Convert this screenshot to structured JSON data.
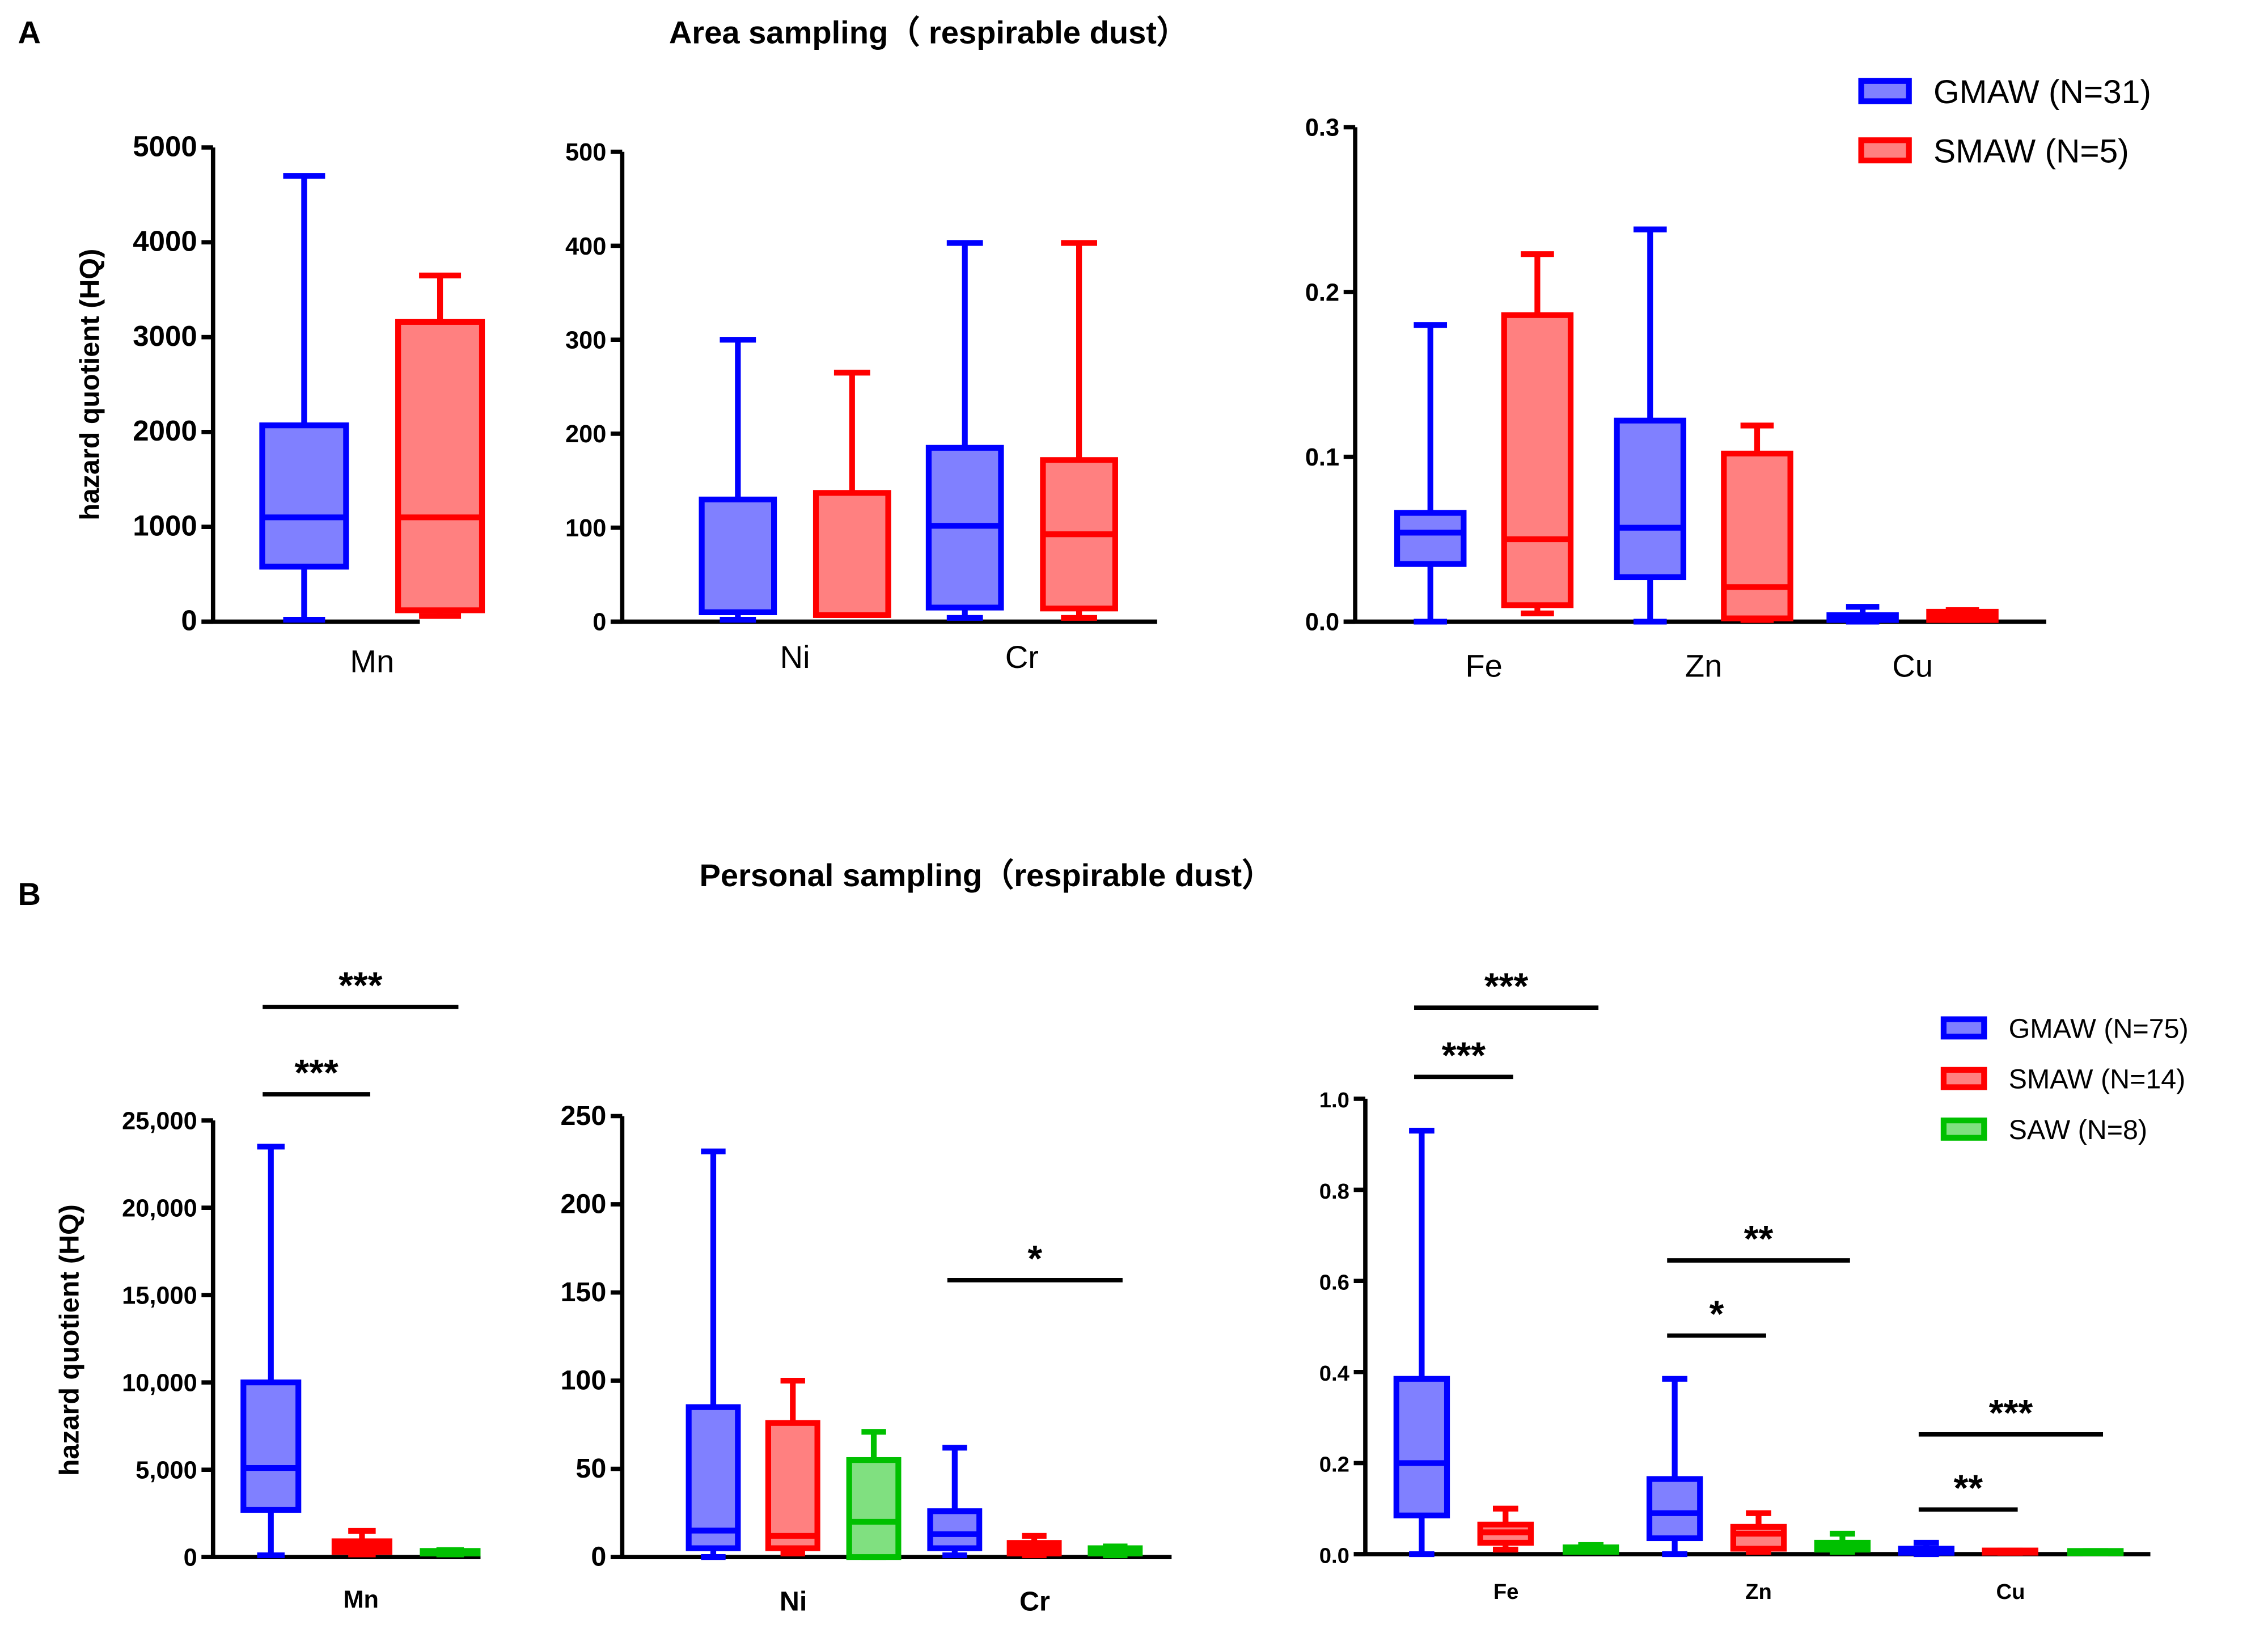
{
  "panel_labels": [
    "A",
    "B"
  ],
  "titles": [
    "Area sampling（ respirable dust）",
    "Personal sampling（respirable dust）"
  ],
  "ylabel": "hazard quotient (HQ)",
  "colors": {
    "GMAW": {
      "stroke": "#0000ff",
      "fill": "#8080ff"
    },
    "SMAW": {
      "stroke": "#ff0000",
      "fill": "#ff8080"
    },
    "SAW": {
      "stroke": "#00c000",
      "fill": "#80e080"
    },
    "axis": "#000000"
  },
  "legends": [
    {
      "entries": [
        {
          "group": "GMAW",
          "label": "GMAW (N=31)"
        },
        {
          "group": "SMAW",
          "label": "SMAW (N=5)"
        }
      ]
    },
    {
      "entries": [
        {
          "group": "GMAW",
          "label": "GMAW (N=75)"
        },
        {
          "group": "SMAW",
          "label": "SMAW (N=14)"
        },
        {
          "group": "SAW",
          "label": "SAW (N=8)"
        }
      ]
    }
  ],
  "chart_data": [
    {
      "id": "A-Mn",
      "type": "box",
      "ylim": [
        0,
        5000
      ],
      "yticks": [
        0,
        1000,
        2000,
        3000,
        4000,
        5000
      ],
      "ytick_labels": [
        "0",
        "1000",
        "2000",
        "3000",
        "4000",
        "5000"
      ],
      "categories": [
        "Mn"
      ],
      "groups": [
        "GMAW",
        "SMAW"
      ],
      "boxes": [
        {
          "category": "Mn",
          "group": "GMAW",
          "min": 20,
          "q1": 580,
          "median": 1100,
          "q3": 2070,
          "max": 4700
        },
        {
          "category": "Mn",
          "group": "SMAW",
          "min": 60,
          "q1": 120,
          "median": 1100,
          "q3": 3160,
          "max": 3650
        }
      ],
      "significance": []
    },
    {
      "id": "A-NiCr",
      "type": "box",
      "ylim": [
        0,
        500
      ],
      "yticks": [
        0,
        100,
        200,
        300,
        400,
        500
      ],
      "ytick_labels": [
        "0",
        "100",
        "200",
        "300",
        "400",
        "500"
      ],
      "categories": [
        "Ni",
        "Cr"
      ],
      "groups": [
        "GMAW",
        "SMAW"
      ],
      "boxes": [
        {
          "category": "Ni",
          "group": "GMAW",
          "min": 2,
          "q1": 10,
          "median": 10,
          "q3": 130,
          "max": 300
        },
        {
          "category": "Ni",
          "group": "SMAW",
          "min": 7,
          "q1": 7,
          "median": 7,
          "q3": 137,
          "max": 265
        },
        {
          "category": "Cr",
          "group": "GMAW",
          "min": 4,
          "q1": 15,
          "median": 102,
          "q3": 185,
          "max": 403
        },
        {
          "category": "Cr",
          "group": "SMAW",
          "min": 4,
          "q1": 14,
          "median": 93,
          "q3": 172,
          "max": 403
        }
      ],
      "significance": []
    },
    {
      "id": "A-FeZnCu",
      "type": "box",
      "ylim": [
        0,
        0.3
      ],
      "yticks": [
        0,
        0.1,
        0.2,
        0.3
      ],
      "ytick_labels": [
        "0.0",
        "0.1",
        "0.2",
        "0.3"
      ],
      "categories": [
        "Fe",
        "Zn",
        "Cu"
      ],
      "groups": [
        "GMAW",
        "SMAW"
      ],
      "boxes": [
        {
          "category": "Fe",
          "group": "GMAW",
          "min": 0,
          "q1": 0.035,
          "median": 0.054,
          "q3": 0.066,
          "max": 0.18
        },
        {
          "category": "Fe",
          "group": "SMAW",
          "min": 0.005,
          "q1": 0.01,
          "median": 0.05,
          "q3": 0.186,
          "max": 0.223
        },
        {
          "category": "Zn",
          "group": "GMAW",
          "min": 0,
          "q1": 0.027,
          "median": 0.057,
          "q3": 0.122,
          "max": 0.238
        },
        {
          "category": "Zn",
          "group": "SMAW",
          "min": 0.001,
          "q1": 0.002,
          "median": 0.021,
          "q3": 0.102,
          "max": 0.119
        },
        {
          "category": "Cu",
          "group": "GMAW",
          "min": 0,
          "q1": 0.001,
          "median": 0.002,
          "q3": 0.004,
          "max": 0.009
        },
        {
          "category": "Cu",
          "group": "SMAW",
          "min": 0.001,
          "q1": 0.001,
          "median": 0.003,
          "q3": 0.006,
          "max": 0.007
        }
      ],
      "significance": []
    },
    {
      "id": "B-Mn",
      "type": "box",
      "ylim": [
        0,
        25000
      ],
      "yticks": [
        0,
        5000,
        10000,
        15000,
        20000,
        25000
      ],
      "ytick_labels": [
        "0",
        "5,000",
        "10,000",
        "15,000",
        "20,000",
        "25,000"
      ],
      "categories": [
        "Mn"
      ],
      "groups": [
        "GMAW",
        "SMAW",
        "SAW"
      ],
      "boxes": [
        {
          "category": "Mn",
          "group": "GMAW",
          "min": 100,
          "q1": 2700,
          "median": 5100,
          "q3": 10000,
          "max": 23500
        },
        {
          "category": "Mn",
          "group": "SMAW",
          "min": 150,
          "q1": 300,
          "median": 600,
          "q3": 900,
          "max": 1500
        },
        {
          "category": "Mn",
          "group": "SAW",
          "min": 150,
          "q1": 200,
          "median": 280,
          "q3": 350,
          "max": 400
        }
      ],
      "significance": [
        {
          "from": 0,
          "to": 1,
          "y": 26500,
          "label": "***"
        },
        {
          "from": 0,
          "to": 2,
          "y": 31500,
          "label": "***"
        }
      ]
    },
    {
      "id": "B-NiCr",
      "type": "box",
      "ylim": [
        0,
        250
      ],
      "yticks": [
        0,
        50,
        100,
        150,
        200,
        250
      ],
      "ytick_labels": [
        "0",
        "50",
        "100",
        "150",
        "200",
        "250"
      ],
      "categories": [
        "Ni",
        "Cr"
      ],
      "groups": [
        "GMAW",
        "SMAW",
        "SAW"
      ],
      "boxes": [
        {
          "category": "Ni",
          "group": "GMAW",
          "min": 0,
          "q1": 5,
          "median": 15,
          "q3": 85,
          "max": 230
        },
        {
          "category": "Ni",
          "group": "SMAW",
          "min": 2,
          "q1": 5,
          "median": 12,
          "q3": 76,
          "max": 100
        },
        {
          "category": "Ni",
          "group": "SAW",
          "min": 0,
          "q1": 0,
          "median": 20,
          "q3": 55,
          "max": 71
        },
        {
          "category": "Cr",
          "group": "GMAW",
          "min": 1,
          "q1": 5,
          "median": 13,
          "q3": 26,
          "max": 62
        },
        {
          "category": "Cr",
          "group": "SMAW",
          "min": 1,
          "q1": 2,
          "median": 5,
          "q3": 8,
          "max": 12
        },
        {
          "category": "Cr",
          "group": "SAW",
          "min": 1,
          "q1": 2,
          "median": 3,
          "q3": 5,
          "max": 6
        }
      ],
      "significance": [
        {
          "from": 3,
          "to": 5,
          "y": 157,
          "label": "*"
        }
      ]
    },
    {
      "id": "B-FeZnCu",
      "type": "box",
      "ylim": [
        0,
        1.0
      ],
      "yticks": [
        0,
        0.2,
        0.4,
        0.6,
        0.8,
        1.0
      ],
      "ytick_labels": [
        "0.0",
        "0.2",
        "0.4",
        "0.6",
        "0.8",
        "1.0"
      ],
      "categories": [
        "Fe",
        "Zn",
        "Cu"
      ],
      "groups": [
        "GMAW",
        "SMAW",
        "SAW"
      ],
      "boxes": [
        {
          "category": "Fe",
          "group": "GMAW",
          "min": 0,
          "q1": 0.085,
          "median": 0.2,
          "q3": 0.385,
          "max": 0.93
        },
        {
          "category": "Fe",
          "group": "SMAW",
          "min": 0.01,
          "q1": 0.025,
          "median": 0.048,
          "q3": 0.065,
          "max": 0.1
        },
        {
          "category": "Fe",
          "group": "SAW",
          "min": 0.005,
          "q1": 0.005,
          "median": 0.01,
          "q3": 0.015,
          "max": 0.02
        },
        {
          "category": "Zn",
          "group": "GMAW",
          "min": 0,
          "q1": 0.035,
          "median": 0.09,
          "q3": 0.165,
          "max": 0.385
        },
        {
          "category": "Zn",
          "group": "SMAW",
          "min": 0.005,
          "q1": 0.012,
          "median": 0.045,
          "q3": 0.06,
          "max": 0.09
        },
        {
          "category": "Zn",
          "group": "SAW",
          "min": 0.005,
          "q1": 0.01,
          "median": 0.02,
          "q3": 0.025,
          "max": 0.045
        },
        {
          "category": "Cu",
          "group": "GMAW",
          "min": 0,
          "q1": 0.003,
          "median": 0.007,
          "q3": 0.012,
          "max": 0.025
        },
        {
          "category": "Cu",
          "group": "SMAW",
          "min": 0.003,
          "q1": 0.004,
          "median": 0.005,
          "q3": 0.008,
          "max": 0.008
        },
        {
          "category": "Cu",
          "group": "SAW",
          "min": 0.002,
          "q1": 0.003,
          "median": 0.004,
          "q3": 0.007,
          "max": 0.007
        }
      ],
      "significance": [
        {
          "from": 0,
          "to": 1,
          "y": 1.048,
          "label": "***"
        },
        {
          "from": 0,
          "to": 2,
          "y": 1.2,
          "label": "***"
        },
        {
          "from": 3,
          "to": 4,
          "y": 0.48,
          "label": "*"
        },
        {
          "from": 3,
          "to": 5,
          "y": 0.645,
          "label": "**"
        },
        {
          "from": 6,
          "to": 7,
          "y": 0.098,
          "label": "**"
        },
        {
          "from": 6,
          "to": 8,
          "y": 0.263,
          "label": "***"
        }
      ]
    }
  ]
}
